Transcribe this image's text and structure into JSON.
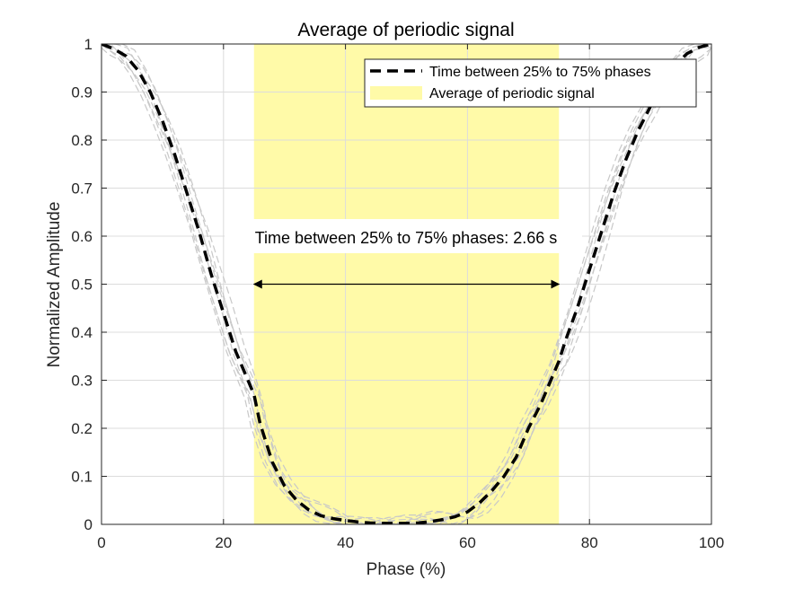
{
  "chart_data": {
    "type": "line",
    "title": "Average of periodic signal",
    "xlabel": "Phase (%)",
    "ylabel": "Normalized Amplitude",
    "xlim": [
      0,
      100
    ],
    "ylim": [
      0,
      1
    ],
    "xticks": [
      0,
      20,
      40,
      60,
      80,
      100
    ],
    "yticks": [
      0,
      0.1,
      0.2,
      0.3,
      0.4,
      0.5,
      0.6,
      0.7,
      0.8,
      0.9,
      1
    ],
    "grid": true,
    "legend_position": "top-right",
    "highlight_region": {
      "x_start": 25,
      "x_end": 75,
      "color": "#fffaa8"
    },
    "series": [
      {
        "name": "Time between 25% to 75% phases",
        "style": "dashed",
        "color": "#000000",
        "x": [
          0,
          2,
          4,
          6,
          8,
          10,
          12,
          14,
          16,
          18,
          20,
          22,
          24,
          25,
          26,
          28,
          30,
          32,
          34,
          36,
          38,
          40,
          42,
          44,
          46,
          48,
          50,
          52,
          54,
          56,
          58,
          60,
          62,
          64,
          66,
          68,
          70,
          72,
          74,
          75,
          76,
          78,
          80,
          82,
          84,
          86,
          88,
          90,
          92,
          94,
          96,
          98,
          100
        ],
        "y": [
          1.0,
          0.99,
          0.975,
          0.945,
          0.9,
          0.84,
          0.77,
          0.69,
          0.61,
          0.52,
          0.44,
          0.36,
          0.3,
          0.27,
          0.21,
          0.13,
          0.08,
          0.05,
          0.03,
          0.018,
          0.012,
          0.008,
          0.005,
          0.003,
          0.002,
          0.002,
          0.002,
          0.003,
          0.006,
          0.01,
          0.016,
          0.026,
          0.045,
          0.07,
          0.1,
          0.14,
          0.2,
          0.25,
          0.31,
          0.34,
          0.38,
          0.45,
          0.53,
          0.61,
          0.69,
          0.76,
          0.82,
          0.87,
          0.92,
          0.955,
          0.98,
          0.993,
          1.0
        ]
      }
    ],
    "background_series": [
      {
        "dx": -0.8,
        "dy": 0.012
      },
      {
        "dx": 0.7,
        "dy": -0.01
      },
      {
        "dx": -0.4,
        "dy": -0.018
      },
      {
        "dx": 1.0,
        "dy": 0.015
      },
      {
        "dx": -1.1,
        "dy": 0.0
      },
      {
        "dx": 0.3,
        "dy": 0.022
      },
      {
        "dx": 1.4,
        "dy": -0.02
      },
      {
        "dx": -1.5,
        "dy": 0.008
      }
    ],
    "legend_entries": [
      {
        "label": "Time between 25% to 75% phases",
        "kind": "dashed-line",
        "color": "#000000"
      },
      {
        "label": "Average of periodic signal",
        "kind": "patch",
        "color": "#fffaa8"
      }
    ],
    "annotation": {
      "text": "Time between 25% to 75% phases: 2.66 s",
      "arrow_y": 0.5,
      "arrow_x_start": 25,
      "arrow_x_end": 75
    }
  }
}
